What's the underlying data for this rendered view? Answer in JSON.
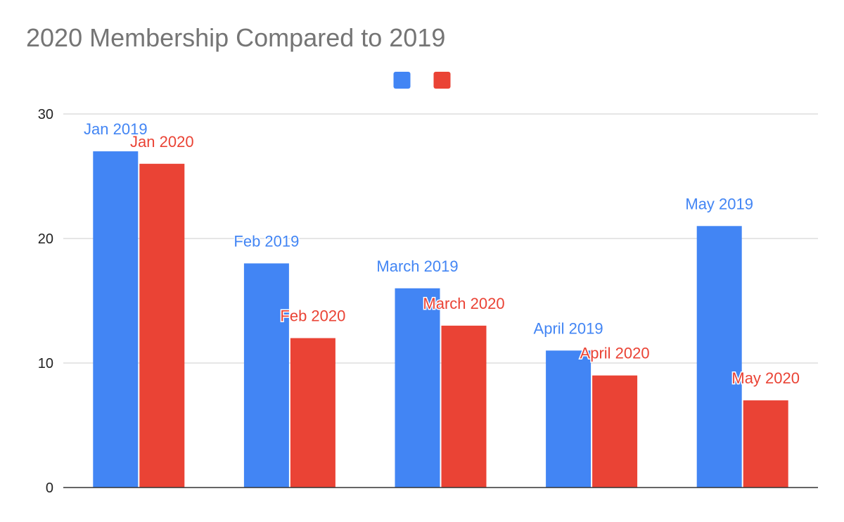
{
  "chart_data": {
    "type": "bar",
    "title": "2020 Membership Compared to 2019",
    "xlabel": "",
    "ylabel": "",
    "ylim": [
      0,
      30
    ],
    "yticks": [
      0,
      10,
      20,
      30
    ],
    "grid": true,
    "legend_position": "top",
    "category_count": 5,
    "series": [
      {
        "color": "#4285f4",
        "values": [
          27,
          18,
          16,
          11,
          21
        ],
        "labels": [
          "Jan 2019",
          "Feb 2019",
          "March 2019",
          "April 2019",
          "May 2019"
        ]
      },
      {
        "color": "#ea4335",
        "values": [
          26,
          12,
          13,
          9,
          7
        ],
        "labels": [
          "Jan 2020",
          "Feb 2020",
          "March 2020",
          "April 2020",
          "May 2020"
        ]
      }
    ]
  }
}
